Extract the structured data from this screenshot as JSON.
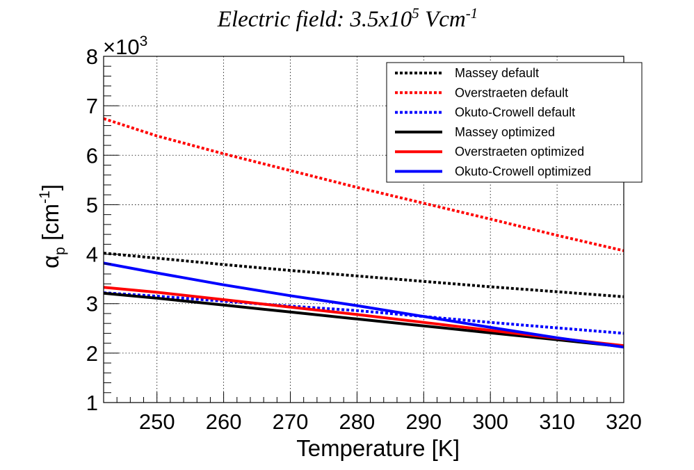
{
  "chart_data": {
    "type": "line",
    "title": {
      "prefix": "Electric field: 3.5x10",
      "exponent": "5",
      "suffix": " Vcm",
      "unit_exponent": "-1"
    },
    "xlabel": "Temperature [K]",
    "ylabel": {
      "symbol": "α",
      "subscript": "p",
      "unit": " [cm",
      "unit_exponent": "-1",
      "close": "]"
    },
    "y_multiplier": {
      "base": "×10",
      "exponent": "3"
    },
    "xlim": [
      242,
      320
    ],
    "ylim": [
      1,
      8
    ],
    "xticks": [
      250,
      260,
      270,
      280,
      290,
      300,
      310,
      320
    ],
    "yticks": [
      1,
      2,
      3,
      4,
      5,
      6,
      7,
      8
    ],
    "xtick_labels": [
      "250",
      "260",
      "270",
      "280",
      "290",
      "300",
      "310",
      "320"
    ],
    "ytick_labels": [
      "1",
      "2",
      "3",
      "4",
      "5",
      "6",
      "7",
      "8"
    ],
    "grid": true,
    "legend_position": "top-right",
    "x": [
      242,
      250,
      260,
      270,
      280,
      290,
      300,
      310,
      320
    ],
    "series": [
      {
        "name": "Massey default",
        "style": "dotted",
        "color": "#000000",
        "values": [
          4.02,
          3.92,
          3.79,
          3.67,
          3.56,
          3.45,
          3.34,
          3.24,
          3.14
        ]
      },
      {
        "name": "Overstraeten default",
        "style": "dotted",
        "color": "#ff0000",
        "values": [
          6.74,
          6.39,
          6.03,
          5.69,
          5.35,
          5.03,
          4.71,
          4.38,
          4.07
        ]
      },
      {
        "name": "Okuto-Crowell default",
        "style": "dotted",
        "color": "#0000ff",
        "values": [
          3.22,
          3.15,
          3.05,
          2.95,
          2.86,
          2.74,
          2.62,
          2.51,
          2.4
        ]
      },
      {
        "name": "Massey optimized",
        "style": "solid",
        "color": "#000000",
        "values": [
          3.21,
          3.11,
          2.97,
          2.83,
          2.69,
          2.55,
          2.41,
          2.27,
          2.13
        ]
      },
      {
        "name": "Overstraeten optimized",
        "style": "solid",
        "color": "#ff0000",
        "values": [
          3.33,
          3.23,
          3.08,
          2.93,
          2.78,
          2.62,
          2.46,
          2.3,
          2.15
        ]
      },
      {
        "name": "Okuto-Crowell optimized",
        "style": "solid",
        "color": "#0000ff",
        "values": [
          3.82,
          3.62,
          3.38,
          3.16,
          2.96,
          2.74,
          2.52,
          2.31,
          2.12
        ]
      }
    ]
  }
}
